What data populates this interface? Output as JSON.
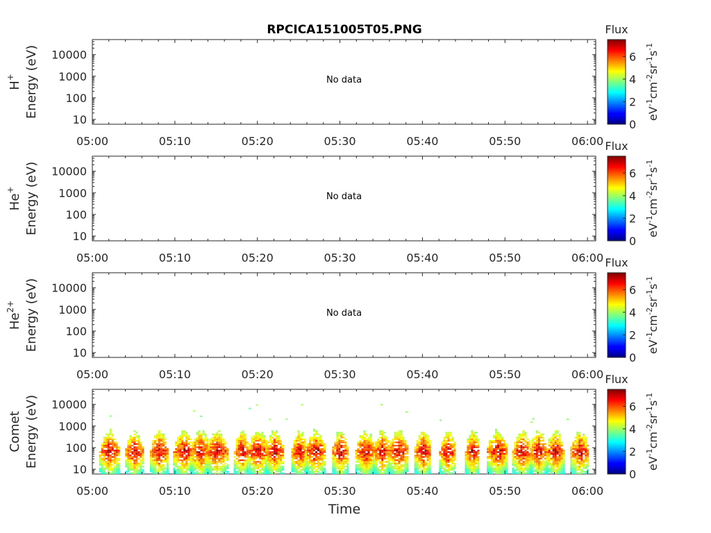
{
  "figure": {
    "title": "RPCICA151005T05.PNG",
    "xlabel": "Time",
    "x_tick_labels": [
      "05:00",
      "05:10",
      "05:20",
      "05:30",
      "05:40",
      "05:50",
      "06:00"
    ],
    "y_tick_labels": [
      "10000",
      "1000",
      "100",
      "10"
    ],
    "colorbar_title": "Flux",
    "colorbar_ticks": [
      "6",
      "4",
      "2",
      "0"
    ],
    "colorbar_unit_parts": [
      "eV",
      "-1",
      "cm",
      "-2",
      "sr",
      "-1",
      "s",
      "-1"
    ],
    "no_data_text": "No data"
  },
  "panels": [
    {
      "label_base": "H",
      "label_sup": "+",
      "label_line2": "Energy (eV)",
      "has_data": false
    },
    {
      "label_base": "He",
      "label_sup": "+",
      "label_line2": "Energy (eV)",
      "has_data": false
    },
    {
      "label_base": "He",
      "label_sup": "2+",
      "label_line2": "Energy (eV)",
      "has_data": false
    },
    {
      "label_base": "Comet",
      "label_sup": "",
      "label_line2": "Energy (eV)",
      "has_data": true
    }
  ],
  "chart_data": {
    "type": "heatmap",
    "title": "RPCICA151005T05.PNG",
    "xlabel": "Time",
    "x_range": [
      "05:00",
      "06:01"
    ],
    "x_ticks": [
      "05:00",
      "05:10",
      "05:20",
      "05:30",
      "05:40",
      "05:50",
      "06:00"
    ],
    "ylabel": "Energy (eV)",
    "y_scale": "log",
    "y_range": [
      6,
      50000
    ],
    "y_ticks": [
      10,
      100,
      1000,
      10000
    ],
    "color_label": "Flux",
    "color_range": [
      0,
      7.5
    ],
    "color_ticks": [
      0,
      2,
      4,
      6
    ],
    "colormap": "jet",
    "panels": [
      {
        "species": "H+",
        "data": "No data"
      },
      {
        "species": "He+",
        "data": "No data"
      },
      {
        "species": "He2+",
        "data": "No data"
      },
      {
        "species": "Comet",
        "burst_times": [
          "05:02",
          "05:05",
          "05:08",
          "05:11",
          "05:13",
          "05:15",
          "05:18",
          "05:20",
          "05:22",
          "05:25",
          "05:27",
          "05:30",
          "05:33",
          "05:35",
          "05:37",
          "05:40",
          "05:43",
          "05:46",
          "05:49",
          "05:52",
          "05:54",
          "05:56",
          "05:59"
        ],
        "flux_range": [
          3,
          7
        ],
        "energy_range_eV": [
          6,
          1500
        ],
        "peak_energy_eV": 60
      }
    ]
  }
}
